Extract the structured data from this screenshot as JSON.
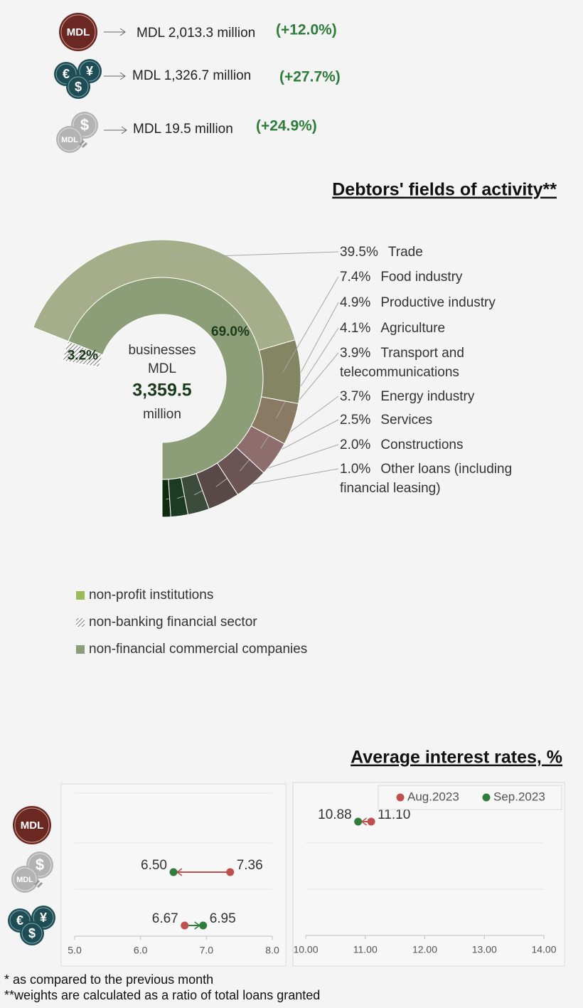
{
  "icons": {
    "mdl": "MDL",
    "euro": "€",
    "yen": "¥",
    "dollar": "$"
  },
  "summary": [
    {
      "amount": "MDL 2,013.3 million",
      "change": "(+12.0%)"
    },
    {
      "amount": "MDL 1,326.7 million",
      "change": "(+27.7%)"
    },
    {
      "amount": "MDL 19.5 million",
      "change": "(+24.9%)"
    }
  ],
  "chart_data": [
    {
      "type": "sunburst",
      "title": "Debtors' fields of activity**",
      "center_text": [
        "businesses",
        "MDL",
        "3,359.5",
        "million"
      ],
      "categories": [
        "Trade",
        "Food industry",
        "Productive industry",
        "Agriculture",
        "Transport and telecommunications",
        "Energy industry",
        "Services",
        "Constructions",
        "Other loans (including financial leasing)"
      ],
      "values": [
        39.5,
        7.4,
        4.9,
        4.1,
        3.9,
        3.7,
        2.5,
        2.0,
        1.0
      ],
      "value_labels": [
        "39.5%",
        "7.4%",
        "4.9%",
        "4.1%",
        "3.9%",
        "3.7%",
        "2.5%",
        "2.0%",
        "1.0%"
      ],
      "colors": [
        "#a5ad8a",
        "#838563",
        "#8a7a63",
        "#8e6e6c",
        "#6b5454",
        "#584848",
        "#3c4b3c",
        "#1c3b20",
        "#0f2a11"
      ],
      "inner": {
        "categories": [
          "non-profit institutions",
          "non-banking financial sector",
          "non-financial commercial companies"
        ],
        "values": [
          0.1,
          3.2,
          69.0
        ],
        "value_labels": [
          null,
          "3.2%",
          "69.0%"
        ],
        "colors": [
          "#9bbb59",
          "#8a8a8a",
          "#8c9e78"
        ],
        "hatch": [
          false,
          true,
          false
        ]
      }
    },
    {
      "type": "dumbbell",
      "categories": [
        null,
        null,
        null
      ],
      "xlim": [
        5,
        8
      ],
      "xticks": [
        {
          "value": 5,
          "label": "5.0"
        },
        {
          "value": 6,
          "label": "6.0"
        },
        {
          "value": 7,
          "label": "7.0"
        },
        {
          "value": 8,
          "label": "8.0"
        }
      ],
      "series": [
        {
          "color": "#c0504d",
          "values": [
            null,
            7.36,
            6.67
          ],
          "value_labels": [
            null,
            "7.36",
            "6.67"
          ]
        },
        {
          "color": "#2e7d3a",
          "values": [
            null,
            6.5,
            6.95
          ],
          "value_labels": [
            null,
            "6.50",
            "6.95"
          ]
        }
      ]
    },
    {
      "type": "dumbbell",
      "categories": [
        null,
        null,
        null
      ],
      "xlim": [
        10,
        14
      ],
      "legend": "top-right",
      "xticks": [
        {
          "value": 10,
          "label": "10.00"
        },
        {
          "value": 11,
          "label": "11.00"
        },
        {
          "value": 12,
          "label": "12.00"
        },
        {
          "value": 13,
          "label": "13.00"
        },
        {
          "value": 14,
          "label": "14.00"
        }
      ],
      "series": [
        {
          "name": "Aug.2023",
          "color": "#c0504d",
          "values": [
            11.1,
            null,
            null
          ],
          "value_labels": [
            "11.10",
            null,
            null
          ]
        },
        {
          "name": "Sep.2023",
          "color": "#2e7d3a",
          "values": [
            10.88,
            null,
            null
          ],
          "value_labels": [
            "10.88",
            null,
            null
          ]
        }
      ]
    }
  ],
  "rates_title": "Average interest rates, %",
  "footnotes": [
    "* as compared to the previous month",
    "**weights are calculated as a ratio of total loans granted"
  ]
}
